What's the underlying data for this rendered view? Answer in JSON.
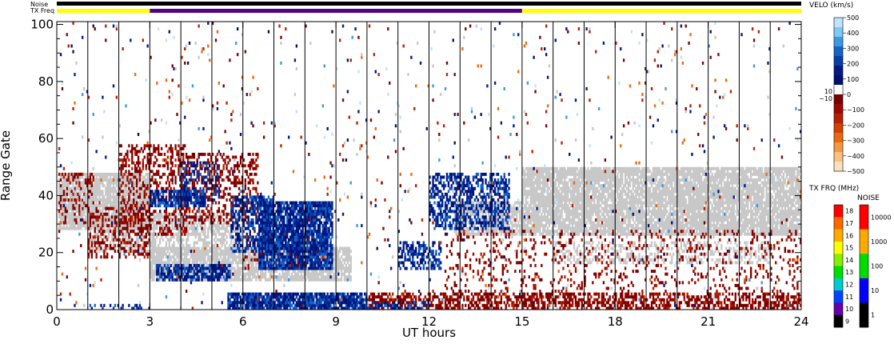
{
  "header": {
    "noise_label": "Noise",
    "txfreq_label": "TX Freq"
  },
  "chart_data": {
    "type": "heatmap",
    "title": "",
    "xlabel": "UT hours",
    "ylabel": "Range Gate",
    "xlim": [
      0,
      24
    ],
    "ylim": [
      0,
      101
    ],
    "x_ticks": [
      "0",
      "3",
      "6",
      "9",
      "12",
      "15",
      "18",
      "21",
      "24"
    ],
    "y_ticks": [
      "0",
      "20",
      "40",
      "60",
      "80",
      "100"
    ],
    "scan_boundary_hours": [
      1,
      2,
      3,
      4,
      5,
      6,
      7,
      8,
      9,
      10,
      11,
      12,
      13,
      14,
      15,
      16,
      17,
      18,
      19,
      20,
      21,
      22,
      23
    ],
    "tx_freq_segments": [
      {
        "start": 0,
        "end": 3,
        "color": "#ffff00"
      },
      {
        "start": 3,
        "end": 15,
        "color": "#550088"
      },
      {
        "start": 15,
        "end": 24,
        "color": "#ffff00"
      }
    ],
    "noise_segments": [
      {
        "start": 0,
        "end": 24,
        "color": "#000000"
      }
    ],
    "velocity_colorbar": {
      "title": "VELO (km/s)",
      "tick_labels": [
        "500",
        "400",
        "300",
        "200",
        "100",
        "0",
        "−100",
        "−200",
        "−300",
        "−400",
        "−500"
      ],
      "tick_values": [
        500,
        400,
        300,
        200,
        100,
        0,
        -100,
        -200,
        -300,
        -400,
        -500
      ],
      "zero_band_labels": [
        "10",
        "−10"
      ],
      "colors": [
        "#bfe3ff",
        "#7ec8f6",
        "#3a9ae0",
        "#1563c9",
        "#083ea8",
        "#001a86",
        "#001070",
        "#ffffff",
        "#7a0000",
        "#9b0a00",
        "#b72000",
        "#d44000",
        "#e86a10",
        "#f59640",
        "#fbbf80",
        "#fde0c0"
      ]
    },
    "txfreq_colorbar": {
      "title": "TX FRQ (MHz)",
      "tick_labels": [
        "18",
        "17",
        "16",
        "15",
        "14",
        "13",
        "12",
        "11",
        "10",
        "9"
      ],
      "colors": [
        "#ff0000",
        "#ff6600",
        "#ffaa00",
        "#ffff00",
        "#88ee00",
        "#00dd00",
        "#00cccc",
        "#0044ff",
        "#6600aa",
        "#000000"
      ]
    },
    "noise_colorbar": {
      "title": "NOISE",
      "tick_labels": [
        "10000",
        "1000",
        "100",
        "10",
        "1"
      ],
      "colors": [
        "#ff0000",
        "#ffaa00",
        "#00dd00",
        "#0000ff",
        "#000000"
      ]
    },
    "regions": [
      {
        "kind": "ground_scatter",
        "t0": 0.05,
        "t1": 3.0,
        "g0": 28,
        "g1": 48,
        "density": 0.85
      },
      {
        "kind": "ground_scatter",
        "t0": 1.0,
        "t1": 6.0,
        "g0": 20,
        "g1": 34,
        "density": 0.6
      },
      {
        "kind": "ground_scatter",
        "t0": 3.0,
        "t1": 9.5,
        "g0": 10,
        "g1": 22,
        "density": 0.8
      },
      {
        "kind": "ground_scatter",
        "t0": 15.0,
        "t1": 24.0,
        "g0": 26,
        "g1": 50,
        "density": 0.85
      },
      {
        "kind": "ground_scatter",
        "t0": 16.0,
        "t1": 23.0,
        "g0": 16,
        "g1": 24,
        "density": 0.35
      },
      {
        "kind": "ground_scatter",
        "t0": 12.8,
        "t1": 15.0,
        "g0": 26,
        "g1": 38,
        "density": 0.7
      },
      {
        "kind": "negative",
        "t0": 0.05,
        "t1": 1.2,
        "g0": 30,
        "g1": 48,
        "density": 0.25
      },
      {
        "kind": "negative",
        "t0": 1.0,
        "t1": 3.0,
        "g0": 18,
        "g1": 36,
        "density": 0.3
      },
      {
        "kind": "negative",
        "t0": 2.0,
        "t1": 4.2,
        "g0": 26,
        "g1": 58,
        "density": 0.35
      },
      {
        "kind": "negative",
        "t0": 4.0,
        "t1": 6.5,
        "g0": 30,
        "g1": 55,
        "density": 0.35
      },
      {
        "kind": "negative",
        "t0": 6.0,
        "t1": 8.5,
        "g0": 14,
        "g1": 28,
        "density": 0.2
      },
      {
        "kind": "negative",
        "t0": 10.0,
        "t1": 24.0,
        "g0": 0,
        "g1": 6,
        "density": 0.55
      },
      {
        "kind": "negative",
        "t0": 12.5,
        "t1": 24.0,
        "g0": 6,
        "g1": 28,
        "density": 0.12
      },
      {
        "kind": "positive",
        "t0": 3.0,
        "t1": 4.8,
        "g0": 36,
        "g1": 42,
        "density": 0.8
      },
      {
        "kind": "positive",
        "t0": 4.0,
        "t1": 5.3,
        "g0": 38,
        "g1": 52,
        "density": 0.3
      },
      {
        "kind": "positive",
        "t0": 3.2,
        "t1": 5.6,
        "g0": 10,
        "g1": 16,
        "density": 0.7
      },
      {
        "kind": "positive",
        "t0": 5.6,
        "t1": 7.0,
        "g0": 20,
        "g1": 40,
        "density": 0.5
      },
      {
        "kind": "positive",
        "t0": 6.5,
        "t1": 8.9,
        "g0": 14,
        "g1": 38,
        "density": 0.85
      },
      {
        "kind": "positive",
        "t0": 5.5,
        "t1": 10.0,
        "g0": 0,
        "g1": 6,
        "density": 0.9
      },
      {
        "kind": "positive",
        "t0": 10.0,
        "t1": 12.0,
        "g0": 0,
        "g1": 3,
        "density": 0.5
      },
      {
        "kind": "positive",
        "t0": 11.0,
        "t1": 12.4,
        "g0": 14,
        "g1": 24,
        "density": 0.55
      },
      {
        "kind": "positive",
        "t0": 12.0,
        "t1": 14.6,
        "g0": 28,
        "g1": 48,
        "density": 0.5
      },
      {
        "kind": "positive",
        "t0": 1.0,
        "t1": 3.0,
        "g0": 0,
        "g1": 2,
        "density": 0.3
      },
      {
        "kind": "noise_speckle",
        "t0": 0.0,
        "t1": 24.0,
        "g0": 0,
        "g1": 101,
        "density": 0.018
      }
    ]
  }
}
